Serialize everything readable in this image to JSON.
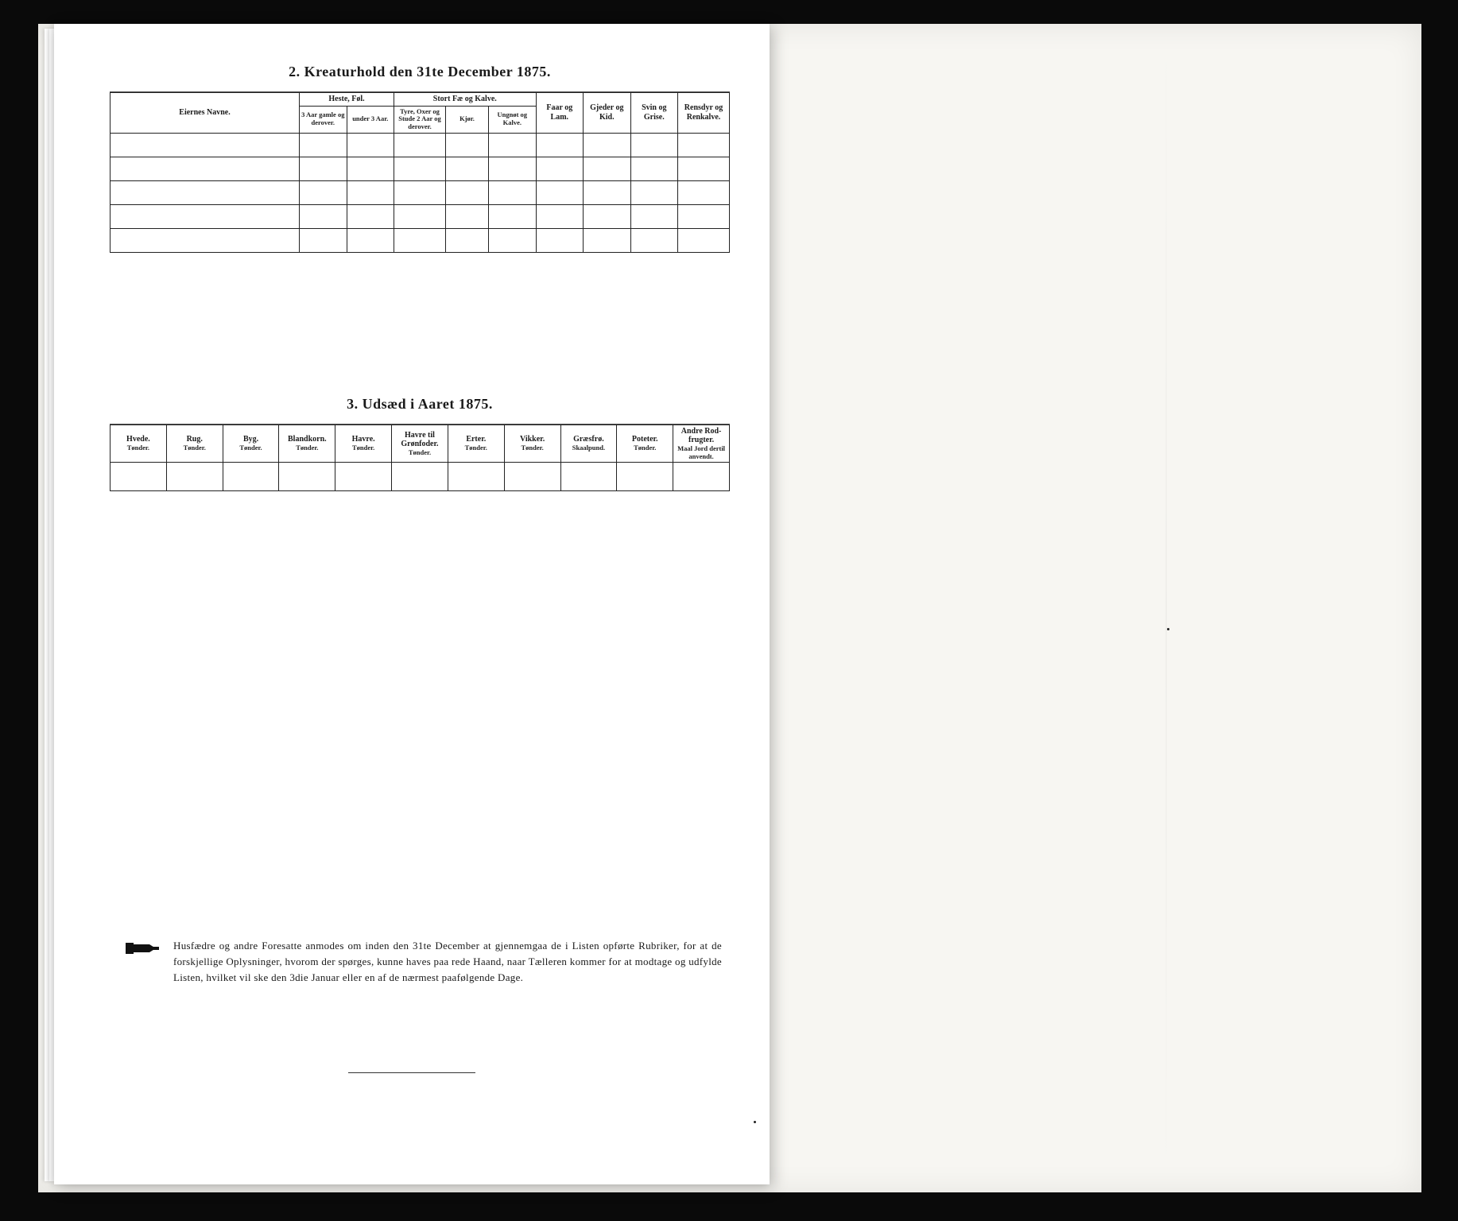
{
  "document": {
    "background_outer": "#0a0a0a",
    "background_page": "#f7f6f2",
    "background_sheet": "#ffffff",
    "text_color": "#1a1a1a",
    "border_color": "#222222"
  },
  "section2": {
    "title": "2.   Kreaturhold den 31te December 1875.",
    "col_name": "Eiernes Navne.",
    "group_heste": "Heste, Føl.",
    "group_fae": "Stort Fæ og Kalve.",
    "col_heste_3aar": "3 Aar gamle og derover.",
    "col_heste_under3": "under 3 Aar.",
    "col_tyre": "Tyre, Oxer og Stude 2 Aar og derover.",
    "col_kjor": "Kjør.",
    "col_ungnot": "Ungnøt og Kalve.",
    "col_faar": "Faar og Lam.",
    "col_gjeder": "Gjeder og Kid.",
    "col_svin": "Svin og Grise.",
    "col_rensdyr": "Rensdyr og Renkalve.",
    "data_rows": 5
  },
  "section3": {
    "title": "3.   Udsæd i Aaret 1875.",
    "cols": [
      {
        "h": "Hvede.",
        "u": "Tønder."
      },
      {
        "h": "Rug.",
        "u": "Tønder."
      },
      {
        "h": "Byg.",
        "u": "Tønder."
      },
      {
        "h": "Blandkorn.",
        "u": "Tønder."
      },
      {
        "h": "Havre.",
        "u": "Tønder."
      },
      {
        "h": "Havre til Grønfoder.",
        "u": "Tønder."
      },
      {
        "h": "Erter.",
        "u": "Tønder."
      },
      {
        "h": "Vikker.",
        "u": "Tønder."
      },
      {
        "h": "Græsfrø.",
        "u": "Skaalpund."
      },
      {
        "h": "Poteter.",
        "u": "Tønder."
      },
      {
        "h": "Andre Rod-frugter.",
        "u": "Maal Jord dertil anvendt."
      }
    ],
    "data_rows": 1
  },
  "footnote": {
    "text": "Husfædre og andre Foresatte anmodes om inden den 31te December at gjennemgaa de i Listen opførte Rubriker, for at de forskjellige Oplysninger, hvorom der spørges, kunne haves paa rede Haand, naar Tælleren kommer for at modtage og udfylde Listen, hvilket vil ske den 3die Januar eller en af de nærmest paafølgende Dage.",
    "icon_name": "pointing-hand-icon"
  }
}
